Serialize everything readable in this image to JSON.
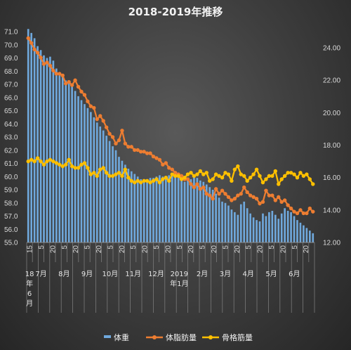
{
  "chart_data": {
    "type": "bar+line",
    "title": "2018-2019年推移",
    "y_left": {
      "min": 55.0,
      "max": 71.0,
      "step": 1.0,
      "ticks": [
        "55.0",
        "56.0",
        "57.0",
        "58.0",
        "59.0",
        "60.0",
        "61.0",
        "62.0",
        "63.0",
        "64.0",
        "65.0",
        "66.0",
        "67.0",
        "68.0",
        "69.0",
        "70.0",
        "71.0"
      ]
    },
    "y_right": {
      "min": 12.0,
      "max": 25.0,
      "step": 2.0,
      "ticks": [
        "12.00",
        "14.00",
        "16.00",
        "18.00",
        "20.00",
        "22.00",
        "24.00"
      ]
    },
    "x_day_labels": [
      "15",
      "5",
      "20",
      "5",
      "20",
      "5",
      "20",
      "5",
      "20",
      "5",
      "20",
      "5",
      "20",
      "5",
      "20",
      "5",
      "20",
      "5",
      "20",
      "5",
      "20",
      "5",
      "20",
      "5",
      "20"
    ],
    "month_labels": [
      {
        "text": "18",
        "slot": 0.5,
        "row": 0
      },
      {
        "text": "年",
        "slot": 0.5,
        "row": 1
      },
      {
        "text": "6",
        "slot": 0.5,
        "row": 2
      },
      {
        "text": "月",
        "slot": 0.5,
        "row": 3
      },
      {
        "text": "7月",
        "slot": 2.5,
        "row": 0
      },
      {
        "text": "8月",
        "slot": 6.5,
        "row": 0
      },
      {
        "text": "9月",
        "slot": 10.5,
        "row": 0
      },
      {
        "text": "10月",
        "slot": 14.5,
        "row": 0
      },
      {
        "text": "11月",
        "slot": 18.5,
        "row": 0
      },
      {
        "text": "12月",
        "slot": 22.5,
        "row": 0
      },
      {
        "text": "2019",
        "slot": 26.5,
        "row": 0
      },
      {
        "text": "年1月",
        "slot": 26.5,
        "row": 1
      },
      {
        "text": "2月",
        "slot": 30.5,
        "row": 0
      },
      {
        "text": "3月",
        "slot": 34.5,
        "row": 0
      },
      {
        "text": "4月",
        "slot": 38.5,
        "row": 0
      },
      {
        "text": "5月",
        "slot": 42.5,
        "row": 0
      },
      {
        "text": "6月",
        "slot": 46.5,
        "row": 0
      }
    ],
    "series": [
      {
        "name": "体重",
        "type": "bar",
        "axis": "left",
        "color": "#6fa8dc",
        "values": [
          71.2,
          70.9,
          70.5,
          69.9,
          69.6,
          69.2,
          69.0,
          69.1,
          68.8,
          68.2,
          67.9,
          67.6,
          67.3,
          67.1,
          66.9,
          66.5,
          66.1,
          65.8,
          65.5,
          65.2,
          64.9,
          64.5,
          64.1,
          63.8,
          63.5,
          63.1,
          62.7,
          62.3,
          62.0,
          61.5,
          61.2,
          60.9,
          60.6,
          60.4,
          60.2,
          60.0,
          59.8,
          59.7,
          59.8,
          59.9,
          59.9,
          60.0,
          60.1,
          60.0,
          59.9,
          60.1,
          60.2,
          60.0,
          59.9,
          59.8,
          59.6,
          59.7,
          59.8,
          60.0,
          59.9,
          59.7,
          59.6,
          59.4,
          59.2,
          59.0,
          58.7,
          58.4,
          58.1,
          58.0,
          57.8,
          57.5,
          57.3,
          57.1,
          57.9,
          58.1,
          57.6,
          57.2,
          56.9,
          56.7,
          56.6,
          57.2,
          57.0,
          57.3,
          57.4,
          57.1,
          56.8,
          57.2,
          57.6,
          57.4,
          57.3,
          57.0,
          56.7,
          56.5,
          56.3,
          56.1,
          55.9,
          55.7
        ]
      },
      {
        "name": "体脂肪量",
        "type": "line",
        "axis": "right",
        "color": "#ed7d31",
        "values": [
          24.6,
          24.3,
          23.9,
          23.7,
          23.4,
          23.0,
          23.1,
          22.9,
          22.6,
          22.4,
          22.4,
          22.3,
          21.8,
          21.9,
          21.7,
          22.0,
          21.6,
          21.3,
          21.1,
          20.7,
          20.4,
          20.3,
          19.6,
          19.8,
          19.5,
          19.1,
          18.7,
          18.5,
          18.1,
          18.3,
          18.9,
          18.1,
          17.9,
          17.9,
          17.7,
          17.7,
          17.6,
          17.6,
          17.5,
          17.5,
          17.3,
          17.2,
          17.1,
          16.8,
          16.9,
          16.6,
          16.5,
          16.3,
          16.2,
          16.1,
          15.9,
          15.9,
          15.6,
          15.4,
          15.6,
          15.3,
          15.4,
          15.0,
          14.9,
          14.7,
          15.3,
          15.0,
          15.2,
          15.0,
          14.8,
          14.6,
          14.7,
          14.9,
          15.0,
          15.4,
          15.1,
          14.9,
          14.8,
          14.7,
          14.4,
          14.5,
          15.2,
          14.9,
          14.9,
          14.6,
          14.8,
          14.5,
          14.6,
          14.3,
          14.1,
          13.9,
          13.8,
          14.0,
          13.8,
          13.8,
          14.1,
          13.9
        ]
      },
      {
        "name": "骨格筋量",
        "type": "line",
        "axis": "right",
        "color": "#ffc000",
        "values": [
          17.0,
          17.1,
          17.0,
          17.2,
          17.0,
          16.8,
          17.0,
          17.1,
          17.0,
          16.9,
          16.8,
          16.7,
          16.8,
          17.1,
          16.7,
          16.6,
          16.6,
          16.8,
          16.9,
          16.6,
          16.2,
          16.3,
          16.1,
          16.5,
          16.6,
          16.3,
          16.1,
          16.1,
          16.2,
          16.3,
          16.1,
          16.5,
          16.0,
          15.8,
          15.7,
          15.8,
          15.7,
          15.8,
          15.8,
          15.7,
          15.8,
          15.9,
          15.7,
          15.9,
          16.0,
          15.8,
          16.2,
          16.1,
          16.1,
          15.9,
          16.0,
          16.2,
          16.3,
          16.1,
          16.2,
          16.4,
          16.2,
          16.3,
          15.8,
          15.9,
          16.2,
          16.1,
          16.0,
          16.3,
          16.2,
          15.8,
          16.5,
          16.7,
          16.2,
          16.1,
          15.8,
          16.0,
          16.2,
          16.5,
          16.1,
          15.7,
          15.9,
          16.1,
          16.1,
          16.4,
          15.6,
          15.9,
          16.1,
          16.3,
          16.3,
          16.2,
          16.0,
          16.3,
          16.1,
          16.2,
          15.9,
          15.6
        ]
      }
    ],
    "legend": {
      "position": "bottom",
      "items": [
        "体重",
        "体脂肪量",
        "骨格筋量"
      ]
    }
  }
}
